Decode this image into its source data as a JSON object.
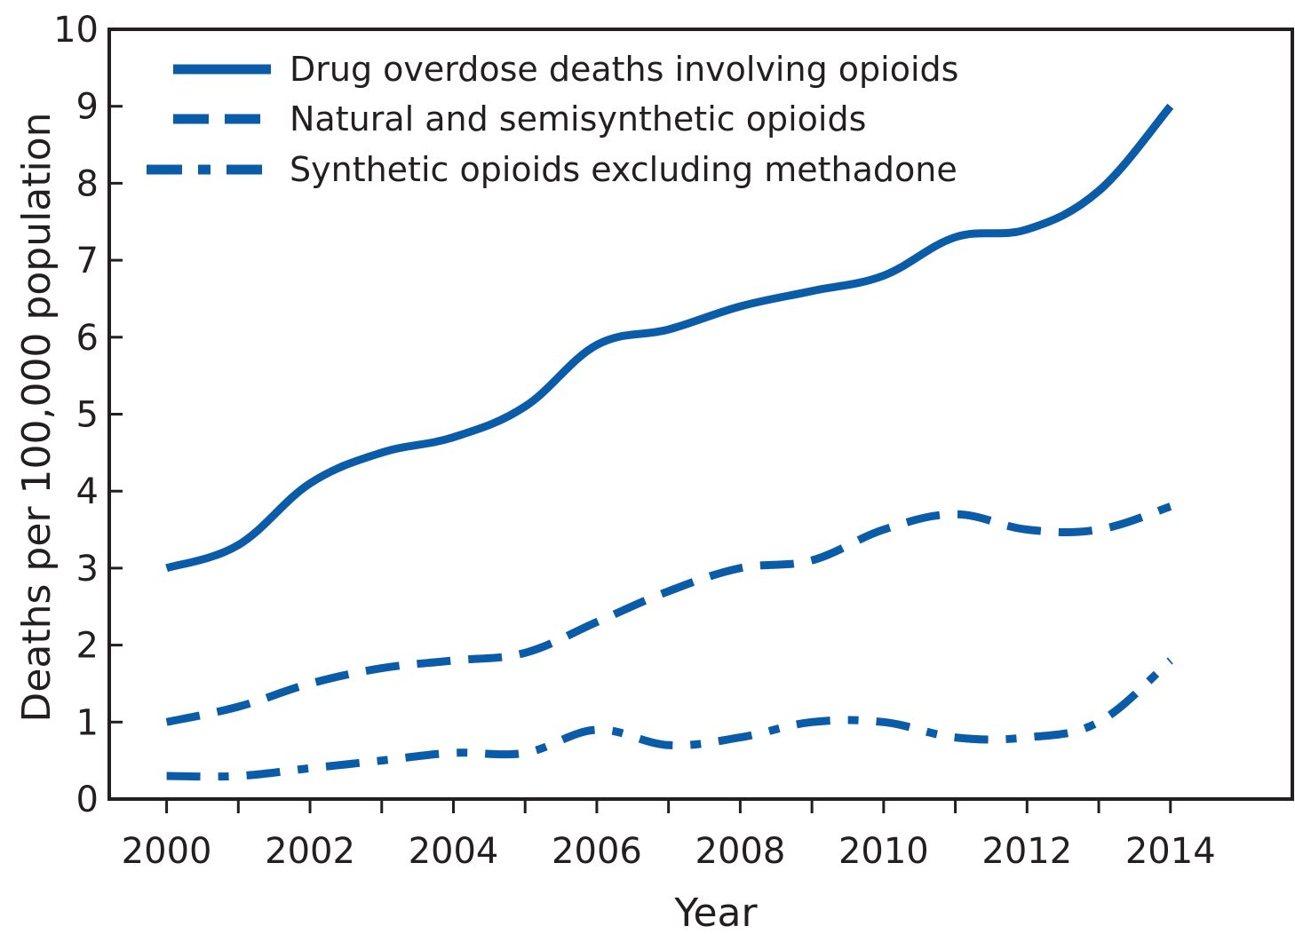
{
  "colors": {
    "series": "#0a5ca8",
    "axis": "#231f20",
    "background": "#ffffff"
  },
  "chart_data": {
    "type": "line",
    "title": "",
    "xlabel": "Year",
    "ylabel": "Deaths per 100,000 population",
    "x": [
      2000,
      2001,
      2002,
      2003,
      2004,
      2005,
      2006,
      2007,
      2008,
      2009,
      2010,
      2011,
      2012,
      2013,
      2014
    ],
    "xticks": [
      2000,
      2002,
      2004,
      2006,
      2008,
      2010,
      2012,
      2014
    ],
    "xlim": [
      1999.2,
      2015.7
    ],
    "ylim": [
      0,
      10
    ],
    "yticks": [
      0,
      1,
      2,
      3,
      4,
      5,
      6,
      7,
      8,
      9,
      10
    ],
    "grid": false,
    "legend_position": "top-left",
    "series": [
      {
        "name": "Drug overdose deaths involving opioids",
        "line_style": "solid",
        "values": [
          3.0,
          3.3,
          4.1,
          4.5,
          4.7,
          5.1,
          5.9,
          6.1,
          6.4,
          6.6,
          6.8,
          7.3,
          7.4,
          7.9,
          9.0
        ]
      },
      {
        "name": "Natural and semisynthetic opioids",
        "line_style": "dashed",
        "values": [
          1.0,
          1.2,
          1.5,
          1.7,
          1.8,
          1.9,
          2.3,
          2.7,
          3.0,
          3.1,
          3.5,
          3.7,
          3.5,
          3.5,
          3.8
        ]
      },
      {
        "name": "Synthetic opioids excluding methadone",
        "line_style": "dash-dot",
        "values": [
          0.3,
          0.3,
          0.4,
          0.5,
          0.6,
          0.6,
          0.9,
          0.7,
          0.8,
          1.0,
          1.0,
          0.8,
          0.8,
          1.0,
          1.8
        ]
      }
    ]
  }
}
